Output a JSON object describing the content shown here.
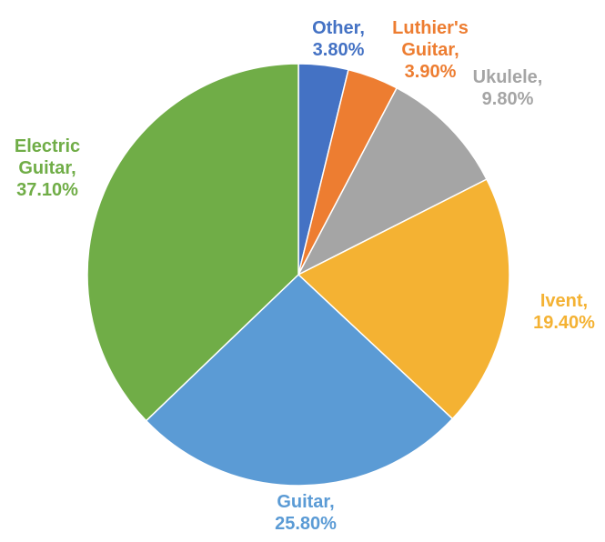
{
  "chart_data": {
    "type": "pie",
    "title": "",
    "start": "top",
    "direction": "clockwise",
    "legend": "none",
    "slices": [
      {
        "name": "Other",
        "value": 3.8,
        "label_lines": [
          "Other,",
          "3.80%"
        ],
        "color": "#4472C4"
      },
      {
        "name": "Luthier's Guitar",
        "value": 3.9,
        "label_lines": [
          "Luthier's",
          "Guitar,",
          "3.90%"
        ],
        "color": "#ED7D31"
      },
      {
        "name": "Ukulele",
        "value": 9.8,
        "label_lines": [
          "Ukulele,",
          "9.80%"
        ],
        "color": "#A5A5A5"
      },
      {
        "name": "Ivent",
        "value": 19.4,
        "label_lines": [
          "Ivent,",
          "19.40%"
        ],
        "color": "#F4B233"
      },
      {
        "name": "Guitar",
        "value": 25.8,
        "label_lines": [
          "Guitar,",
          "25.80%"
        ],
        "color": "#5B9BD5"
      },
      {
        "name": "Electric Guitar",
        "value": 37.1,
        "label_lines": [
          "Electric",
          "Guitar,",
          "37.10%"
        ],
        "color": "#70AD47"
      }
    ]
  }
}
